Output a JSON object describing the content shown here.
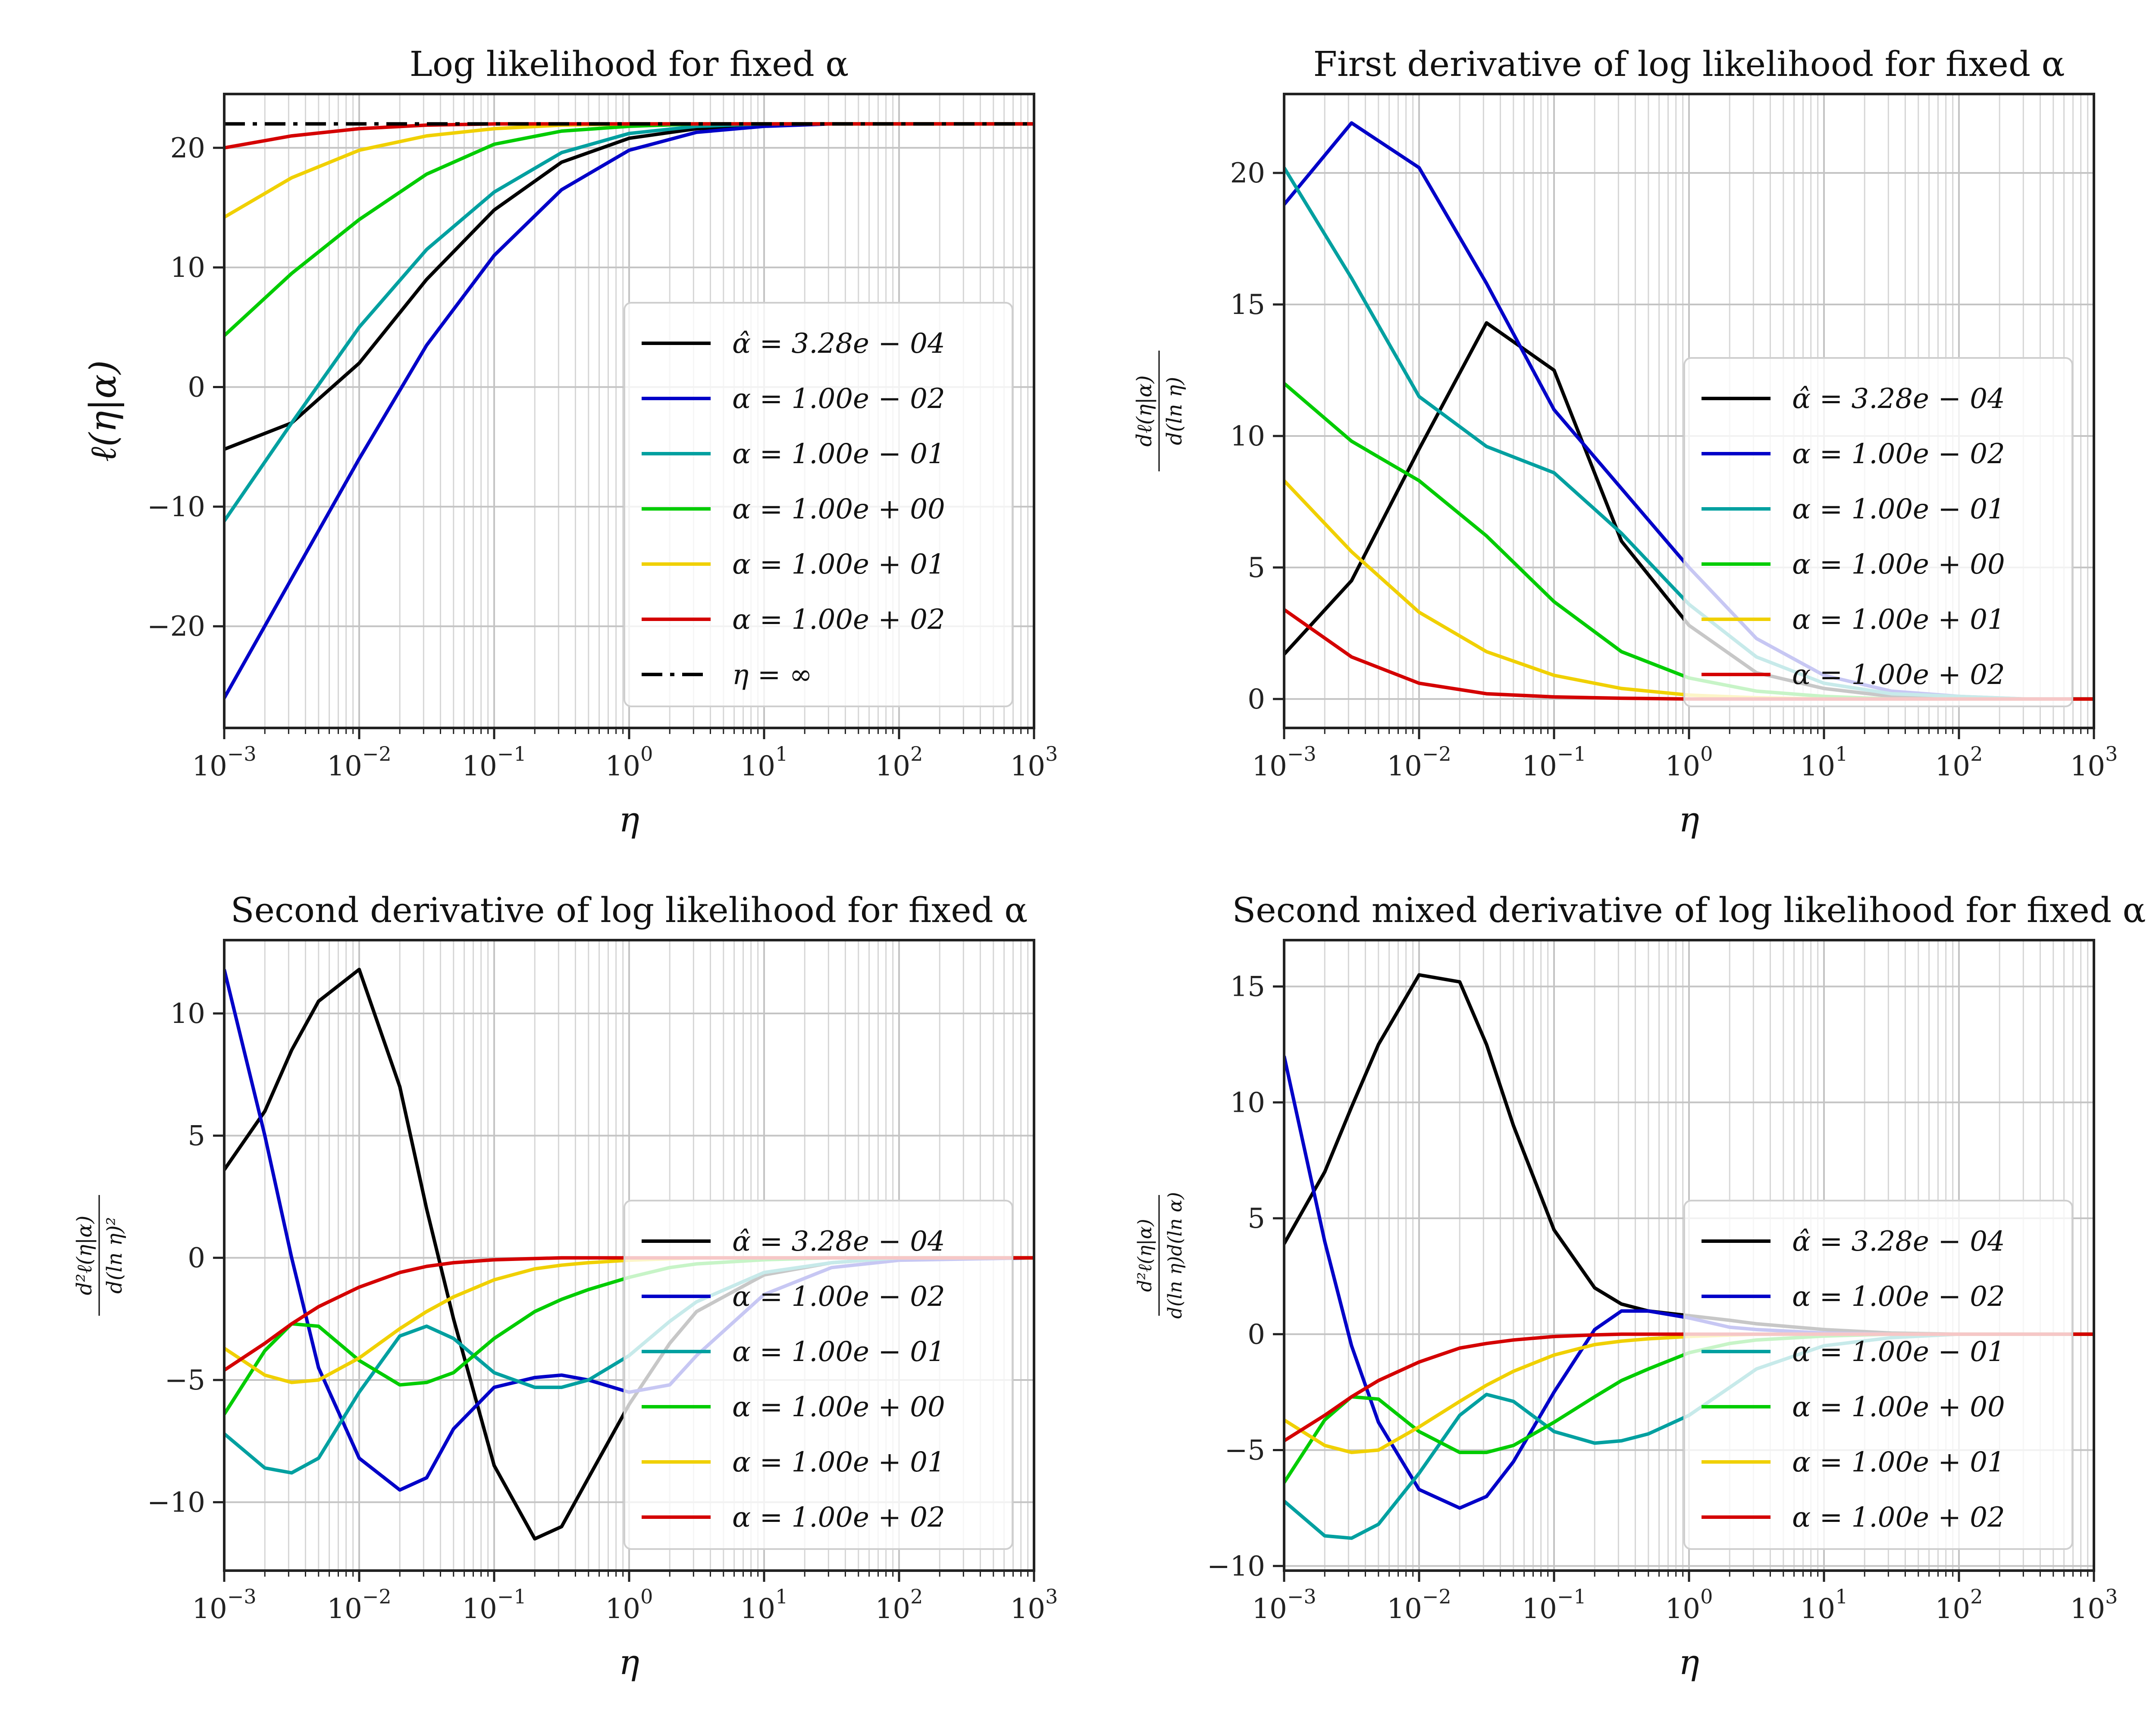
{
  "chart_data": [
    {
      "type": "line",
      "title": "Log likelihood for fixed α",
      "xlabel": "η",
      "ylabel": "ℓ(η|α)",
      "xscale": "log",
      "xlim": [
        0.001,
        1000
      ],
      "ylim": [
        -28.5,
        24.5
      ],
      "yticks": [
        -20,
        -10,
        0,
        10,
        20
      ],
      "grid": true,
      "legend_position": "lower-right",
      "x": [
        0.001,
        0.00316,
        0.01,
        0.0316,
        0.1,
        0.316,
        1,
        3.16,
        10,
        31.6,
        100,
        316,
        1000
      ],
      "series": [
        {
          "name": "α̂ = 3.28e − 04",
          "color": "#000000",
          "values": [
            -5.2,
            -3.0,
            2.0,
            9.0,
            14.8,
            18.8,
            20.8,
            21.6,
            21.9,
            22.0,
            22.0,
            22.0,
            22.0
          ]
        },
        {
          "name": "α = 1.00e − 02",
          "color": "#0000c8",
          "values": [
            -26.0,
            -16.0,
            -6.0,
            3.5,
            11.0,
            16.5,
            19.8,
            21.3,
            21.8,
            22.0,
            22.0,
            22.0,
            22.0
          ]
        },
        {
          "name": "α = 1.00e − 01",
          "color": "#00a0a0",
          "values": [
            -11.2,
            -3.0,
            5.0,
            11.5,
            16.3,
            19.6,
            21.2,
            21.8,
            22.0,
            22.0,
            22.0,
            22.0,
            22.0
          ]
        },
        {
          "name": "α = 1.00e + 00",
          "color": "#00cc00",
          "values": [
            4.3,
            9.5,
            14.0,
            17.8,
            20.3,
            21.4,
            21.8,
            22.0,
            22.0,
            22.0,
            22.0,
            22.0,
            22.0
          ]
        },
        {
          "name": "α = 1.00e + 01",
          "color": "#f0d000",
          "values": [
            14.2,
            17.5,
            19.8,
            21.0,
            21.6,
            21.9,
            22.0,
            22.0,
            22.0,
            22.0,
            22.0,
            22.0,
            22.0
          ]
        },
        {
          "name": "α = 1.00e + 02",
          "color": "#d40000",
          "values": [
            20.0,
            21.0,
            21.6,
            21.9,
            22.0,
            22.0,
            22.0,
            22.0,
            22.0,
            22.0,
            22.0,
            22.0,
            22.0
          ]
        },
        {
          "name": "η = ∞",
          "color": "#000000",
          "dash": "dashdot",
          "values": [
            22.0,
            22.0,
            22.0,
            22.0,
            22.0,
            22.0,
            22.0,
            22.0,
            22.0,
            22.0,
            22.0,
            22.0,
            22.0
          ]
        }
      ]
    },
    {
      "type": "line",
      "title": "First derivative of log likelihood for fixed α",
      "xlabel": "η",
      "ylabel": "dℓ(η|α) / d(ln η)",
      "xscale": "log",
      "xlim": [
        0.001,
        1000
      ],
      "ylim": [
        -1.1,
        23.0
      ],
      "yticks": [
        0,
        5,
        10,
        15,
        20
      ],
      "grid": true,
      "legend_position": "lower-right",
      "x": [
        0.001,
        0.00316,
        0.01,
        0.0316,
        0.1,
        0.316,
        1,
        3.16,
        10,
        31.6,
        100,
        316,
        1000
      ],
      "series": [
        {
          "name": "α̂ = 3.28e − 04",
          "color": "#000000",
          "values": [
            1.7,
            4.5,
            9.5,
            14.3,
            12.5,
            6.0,
            2.8,
            1.0,
            0.4,
            0.1,
            0.0,
            0.0,
            0.0
          ]
        },
        {
          "name": "α = 1.00e − 02",
          "color": "#0000c8",
          "values": [
            18.8,
            21.9,
            20.2,
            15.8,
            11.0,
            8.0,
            5.0,
            2.3,
            0.9,
            0.3,
            0.1,
            0.0,
            0.0
          ]
        },
        {
          "name": "α = 1.00e − 01",
          "color": "#00a0a0",
          "values": [
            20.2,
            16.0,
            11.5,
            9.6,
            8.6,
            6.3,
            3.6,
            1.6,
            0.6,
            0.2,
            0.1,
            0.0,
            0.0
          ]
        },
        {
          "name": "α = 1.00e + 00",
          "color": "#00cc00",
          "values": [
            12.0,
            9.8,
            8.3,
            6.2,
            3.7,
            1.8,
            0.8,
            0.3,
            0.1,
            0.0,
            0.0,
            0.0,
            0.0
          ]
        },
        {
          "name": "α = 1.00e + 01",
          "color": "#f0d000",
          "values": [
            8.3,
            5.6,
            3.3,
            1.8,
            0.9,
            0.4,
            0.15,
            0.05,
            0.0,
            0.0,
            0.0,
            0.0,
            0.0
          ]
        },
        {
          "name": "α = 1.00e + 02",
          "color": "#d40000",
          "values": [
            3.4,
            1.6,
            0.6,
            0.2,
            0.08,
            0.03,
            0.0,
            0.0,
            0.0,
            0.0,
            0.0,
            0.0,
            0.0
          ]
        }
      ]
    },
    {
      "type": "line",
      "title": "Second derivative of log likelihood for fixed α",
      "xlabel": "η",
      "ylabel": "d²ℓ(η|α) / d(ln η)²",
      "xscale": "log",
      "xlim": [
        0.001,
        1000
      ],
      "ylim": [
        -12.8,
        13.0
      ],
      "yticks": [
        -10,
        -5,
        0,
        5,
        10
      ],
      "grid": true,
      "legend_position": "lower-right",
      "x": [
        0.001,
        0.002,
        0.00316,
        0.005,
        0.01,
        0.02,
        0.0316,
        0.05,
        0.1,
        0.2,
        0.316,
        0.5,
        1,
        2,
        3.16,
        10,
        31.6,
        100,
        1000
      ],
      "series": [
        {
          "name": "α̂ = 3.28e − 04",
          "color": "#000000",
          "values": [
            3.6,
            6.0,
            8.5,
            10.5,
            11.8,
            7.0,
            2.0,
            -2.5,
            -8.5,
            -11.5,
            -11.0,
            -9.0,
            -6.0,
            -3.5,
            -2.2,
            -0.7,
            -0.2,
            0.0,
            0.0
          ]
        },
        {
          "name": "α = 1.00e − 02",
          "color": "#0000c8",
          "values": [
            11.8,
            5.0,
            0.0,
            -4.5,
            -8.2,
            -9.5,
            -9.0,
            -7.0,
            -5.3,
            -4.9,
            -4.8,
            -5.0,
            -5.5,
            -5.2,
            -4.0,
            -1.5,
            -0.4,
            -0.1,
            0.0
          ]
        },
        {
          "name": "α = 1.00e − 01",
          "color": "#00a0a0",
          "values": [
            -7.2,
            -8.6,
            -8.8,
            -8.2,
            -5.5,
            -3.2,
            -2.8,
            -3.3,
            -4.7,
            -5.3,
            -5.3,
            -5.0,
            -4.0,
            -2.6,
            -1.8,
            -0.6,
            -0.2,
            0.0,
            0.0
          ]
        },
        {
          "name": "α = 1.00e + 00",
          "color": "#00cc00",
          "values": [
            -6.4,
            -3.8,
            -2.7,
            -2.8,
            -4.2,
            -5.2,
            -5.1,
            -4.7,
            -3.3,
            -2.2,
            -1.7,
            -1.3,
            -0.8,
            -0.4,
            -0.25,
            -0.08,
            0.0,
            0.0,
            0.0
          ]
        },
        {
          "name": "α = 1.00e + 01",
          "color": "#f0d000",
          "values": [
            -3.7,
            -4.8,
            -5.1,
            -5.0,
            -4.1,
            -2.9,
            -2.2,
            -1.6,
            -0.9,
            -0.45,
            -0.3,
            -0.2,
            -0.1,
            -0.04,
            0.0,
            0.0,
            0.0,
            0.0,
            0.0
          ]
        },
        {
          "name": "α = 1.00e + 02",
          "color": "#d40000",
          "values": [
            -4.6,
            -3.5,
            -2.7,
            -2.0,
            -1.2,
            -0.6,
            -0.35,
            -0.2,
            -0.08,
            -0.03,
            0.0,
            0.0,
            0.0,
            0.0,
            0.0,
            0.0,
            0.0,
            0.0,
            0.0
          ]
        }
      ]
    },
    {
      "type": "line",
      "title": "Second mixed derivative of log likelihood for fixed α",
      "xlabel": "η",
      "ylabel": "d²ℓ(η|α) / d(ln η)d(ln α)",
      "xscale": "log",
      "xlim": [
        0.001,
        1000
      ],
      "ylim": [
        -10.2,
        17.0
      ],
      "yticks": [
        -10,
        -5,
        0,
        5,
        10,
        15
      ],
      "grid": true,
      "legend_position": "lower-right",
      "x": [
        0.001,
        0.002,
        0.00316,
        0.005,
        0.01,
        0.02,
        0.0316,
        0.05,
        0.1,
        0.2,
        0.316,
        0.5,
        1,
        2,
        3.16,
        10,
        31.6,
        100,
        1000
      ],
      "series": [
        {
          "name": "α̂ = 3.28e − 04",
          "color": "#000000",
          "values": [
            3.9,
            7.0,
            9.8,
            12.5,
            15.5,
            15.2,
            12.5,
            9.0,
            4.5,
            2.0,
            1.3,
            1.0,
            0.8,
            0.6,
            0.45,
            0.2,
            0.05,
            0.0,
            0.0
          ]
        },
        {
          "name": "α = 1.00e − 02",
          "color": "#0000c8",
          "values": [
            12.0,
            4.0,
            -0.5,
            -3.8,
            -6.7,
            -7.5,
            -7.0,
            -5.5,
            -2.5,
            0.2,
            1.0,
            1.0,
            0.7,
            0.3,
            0.2,
            0.05,
            0.0,
            0.0,
            0.0
          ]
        },
        {
          "name": "α = 1.00e − 01",
          "color": "#00a0a0",
          "values": [
            -7.2,
            -8.7,
            -8.8,
            -8.2,
            -6.0,
            -3.5,
            -2.6,
            -2.9,
            -4.2,
            -4.7,
            -4.6,
            -4.3,
            -3.5,
            -2.3,
            -1.5,
            -0.5,
            -0.15,
            0.0,
            0.0
          ]
        },
        {
          "name": "α = 1.00e + 00",
          "color": "#00cc00",
          "values": [
            -6.4,
            -3.7,
            -2.7,
            -2.8,
            -4.2,
            -5.1,
            -5.1,
            -4.8,
            -3.8,
            -2.7,
            -2.0,
            -1.5,
            -0.8,
            -0.4,
            -0.25,
            -0.08,
            0.0,
            0.0,
            0.0
          ]
        },
        {
          "name": "α = 1.00e + 01",
          "color": "#f0d000",
          "values": [
            -3.7,
            -4.8,
            -5.1,
            -5.0,
            -4.0,
            -2.9,
            -2.2,
            -1.6,
            -0.9,
            -0.45,
            -0.3,
            -0.2,
            -0.1,
            -0.04,
            0.0,
            0.0,
            0.0,
            0.0,
            0.0
          ]
        },
        {
          "name": "α = 1.00e + 02",
          "color": "#d40000",
          "values": [
            -4.6,
            -3.5,
            -2.7,
            -2.0,
            -1.2,
            -0.6,
            -0.4,
            -0.25,
            -0.1,
            -0.03,
            0.0,
            0.0,
            0.0,
            0.0,
            0.0,
            0.0,
            0.0,
            0.0,
            0.0
          ]
        }
      ]
    }
  ]
}
